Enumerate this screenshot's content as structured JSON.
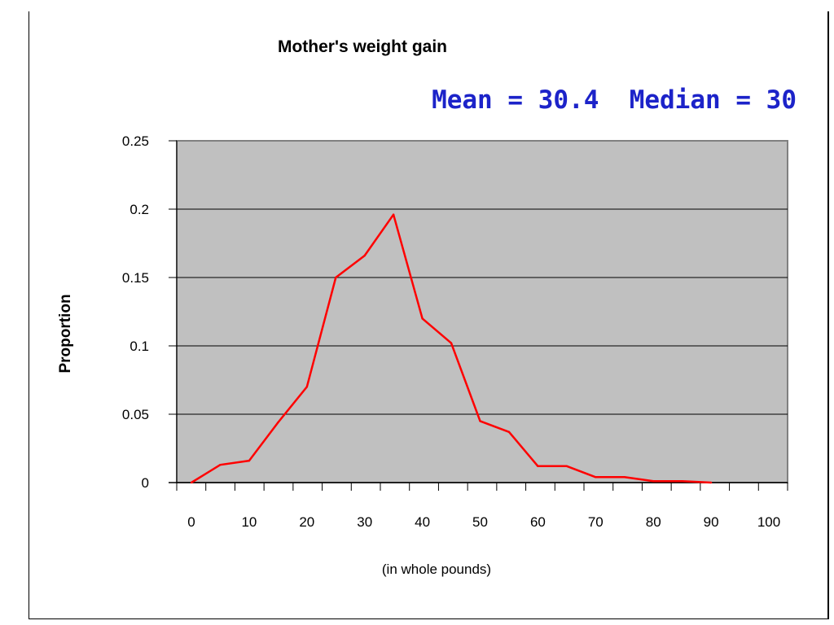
{
  "chart_data": {
    "type": "line",
    "title": "Mother's weight gain",
    "annotation": "Mean = 30.4  Median = 30",
    "xlabel": "(in whole pounds)",
    "ylabel": "Proportion",
    "xlim": [
      0,
      100
    ],
    "ylim": [
      0,
      0.25
    ],
    "x_ticks": [
      "0",
      "10",
      "20",
      "30",
      "40",
      "50",
      "60",
      "70",
      "80",
      "90",
      "100"
    ],
    "y_ticks": [
      "0",
      "0.05",
      "0.1",
      "0.15",
      "0.2",
      "0.25"
    ],
    "grid": true,
    "plot_background": "#c0c0c0",
    "line_color": "#ff0000",
    "series": [
      {
        "x": [
          0,
          5,
          10,
          15,
          20,
          25,
          30,
          35,
          40,
          45,
          50,
          55,
          60,
          65,
          70,
          75,
          80,
          85,
          90
        ],
        "values": [
          0.0,
          0.013,
          0.016,
          0.044,
          0.07,
          0.15,
          0.166,
          0.196,
          0.12,
          0.102,
          0.045,
          0.037,
          0.012,
          0.012,
          0.004,
          0.004,
          0.001,
          0.001,
          0.0
        ]
      }
    ]
  }
}
